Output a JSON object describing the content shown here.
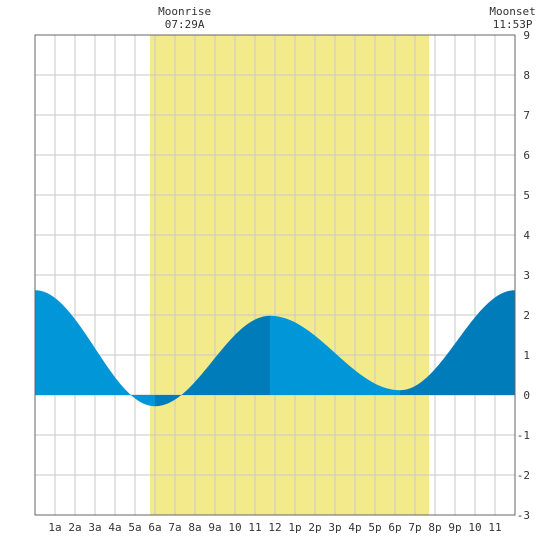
{
  "colors": {
    "daylight": "#f3ea8c",
    "tide_light": "#0096d8",
    "tide_dark": "#007cba",
    "grid": "#c8c8c8",
    "frame": "#666666",
    "background": "#ffffff"
  },
  "moon": {
    "rise_title": "Moonrise",
    "rise_time": "07:29A",
    "set_title": "Moonset",
    "set_time": "11:53P"
  },
  "chart_data": {
    "type": "area",
    "x_unit": "hours after midnight",
    "xlim": [
      0,
      24
    ],
    "ylim": [
      -3,
      9
    ],
    "y_ticks": [
      9,
      8,
      7,
      6,
      5,
      4,
      3,
      2,
      1,
      0,
      -1,
      -2,
      -3
    ],
    "y_tick_labels": [
      "9",
      "8",
      "7",
      "6",
      "5",
      "4",
      "3",
      "2",
      "1",
      "0",
      "-1",
      "-2",
      "-3"
    ],
    "x_ticks": [
      1,
      2,
      3,
      4,
      5,
      6,
      7,
      8,
      9,
      10,
      11,
      12,
      13,
      14,
      15,
      16,
      17,
      18,
      19,
      20,
      21,
      22,
      23
    ],
    "x_tick_labels": [
      "1a",
      "2a",
      "3a",
      "4a",
      "5a",
      "6a",
      "7a",
      "8a",
      "9a",
      "10",
      "11",
      "12",
      "1p",
      "2p",
      "3p",
      "4p",
      "5p",
      "6p",
      "7p",
      "8p",
      "9p",
      "10",
      "11"
    ],
    "daylight": [
      5.75,
      19.7
    ],
    "moonrise": 7.48,
    "moonset": 23.88,
    "grid": true,
    "series": [
      {
        "points": [
          [
            0,
            2.62
          ],
          [
            1,
            2.25
          ],
          [
            2,
            1.65
          ],
          [
            3,
            0.95
          ],
          [
            4,
            0.38
          ],
          [
            5,
            0.02
          ],
          [
            6,
            -0.28
          ],
          [
            7,
            0.02
          ],
          [
            8,
            0.55
          ],
          [
            9,
            1.15
          ],
          [
            10,
            1.65
          ],
          [
            11,
            1.92
          ],
          [
            11.75,
            1.98
          ],
          [
            12,
            1.97
          ],
          [
            13,
            1.78
          ],
          [
            14,
            1.42
          ],
          [
            15,
            1.0
          ],
          [
            16,
            0.6
          ],
          [
            17,
            0.28
          ],
          [
            18,
            0.12
          ],
          [
            18.25,
            0.12
          ],
          [
            19,
            0.25
          ],
          [
            20,
            0.72
          ],
          [
            21,
            1.35
          ],
          [
            22,
            1.98
          ],
          [
            23,
            2.42
          ],
          [
            24,
            2.62
          ]
        ],
        "extrema": [
          [
            0,
            2.62
          ],
          [
            6,
            -0.28
          ],
          [
            11.75,
            1.98
          ],
          [
            18.25,
            0.12
          ],
          [
            24,
            2.62
          ]
        ]
      }
    ]
  }
}
